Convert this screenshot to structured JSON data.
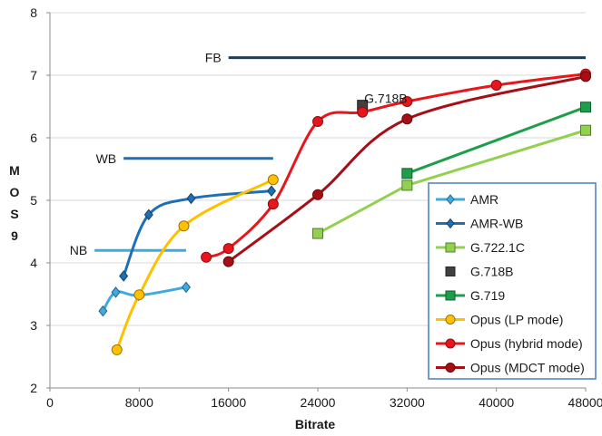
{
  "chart_data": {
    "type": "line",
    "xlabel": "Bitrate",
    "ylabel": "MOS",
    "ylabel_suffix": "9",
    "xlim": [
      0,
      48000
    ],
    "ylim": [
      2,
      8
    ],
    "x_ticks": [
      0,
      8000,
      16000,
      24000,
      32000,
      40000,
      48000
    ],
    "y_ticks": [
      2,
      3,
      4,
      5,
      6,
      7,
      8
    ],
    "legend_position": "right",
    "bands": [
      {
        "label": "FB",
        "x": [
          16000,
          48000
        ],
        "y": 7.28,
        "color": "#1f3b57"
      },
      {
        "label": "WB",
        "x": [
          6600,
          20000
        ],
        "y": 5.67,
        "color": "#1f6fb2"
      },
      {
        "label": "NB",
        "x": [
          4000,
          12200
        ],
        "y": 4.2,
        "color": "#3fa9e0"
      }
    ],
    "point_labels": [
      {
        "text": "G.718B",
        "x": 28000,
        "y": 6.5
      }
    ],
    "series": [
      {
        "name": "AMR",
        "color": "#3fa9e0",
        "marker": "diamond",
        "smooth": true,
        "points": [
          [
            4750,
            3.23
          ],
          [
            5900,
            3.53
          ],
          [
            7950,
            3.48
          ],
          [
            12200,
            3.61
          ]
        ]
      },
      {
        "name": "AMR-WB",
        "color": "#1f6fb2",
        "marker": "diamond",
        "smooth": true,
        "points": [
          [
            6600,
            3.79
          ],
          [
            8850,
            4.77
          ],
          [
            12650,
            5.03
          ],
          [
            19850,
            5.15
          ]
        ]
      },
      {
        "name": "G.722.1C",
        "color": "#92d050",
        "marker": "square",
        "smooth": false,
        "points": [
          [
            24000,
            4.47
          ],
          [
            32000,
            5.24
          ],
          [
            48000,
            6.12
          ]
        ]
      },
      {
        "name": "G.718B",
        "color": "#404040",
        "marker": "square",
        "smooth": false,
        "line": false,
        "points": [
          [
            28000,
            6.52
          ]
        ]
      },
      {
        "name": "G.719",
        "color": "#1e9e4a",
        "marker": "square",
        "smooth": false,
        "points": [
          [
            32000,
            5.43
          ],
          [
            48000,
            6.49
          ]
        ]
      },
      {
        "name": "Opus (LP mode)",
        "color": "#ffc000",
        "marker": "circle",
        "smooth": true,
        "points": [
          [
            6000,
            2.61
          ],
          [
            8000,
            3.49
          ],
          [
            12000,
            4.59
          ],
          [
            20000,
            5.33
          ]
        ]
      },
      {
        "name": "Opus (hybrid mode)",
        "color": "#e8161b",
        "marker": "circle",
        "smooth": true,
        "points": [
          [
            14000,
            4.09
          ],
          [
            16000,
            4.23
          ],
          [
            20000,
            4.94
          ],
          [
            24000,
            6.26
          ],
          [
            28000,
            6.41
          ],
          [
            32000,
            6.58
          ],
          [
            40000,
            6.84
          ],
          [
            48000,
            7.02
          ]
        ]
      },
      {
        "name": "Opus (MDCT mode)",
        "color": "#a50f15",
        "marker": "circle",
        "smooth": true,
        "points": [
          [
            16000,
            4.02
          ],
          [
            24000,
            5.09
          ],
          [
            32000,
            6.3
          ],
          [
            48000,
            6.98
          ]
        ]
      }
    ]
  }
}
